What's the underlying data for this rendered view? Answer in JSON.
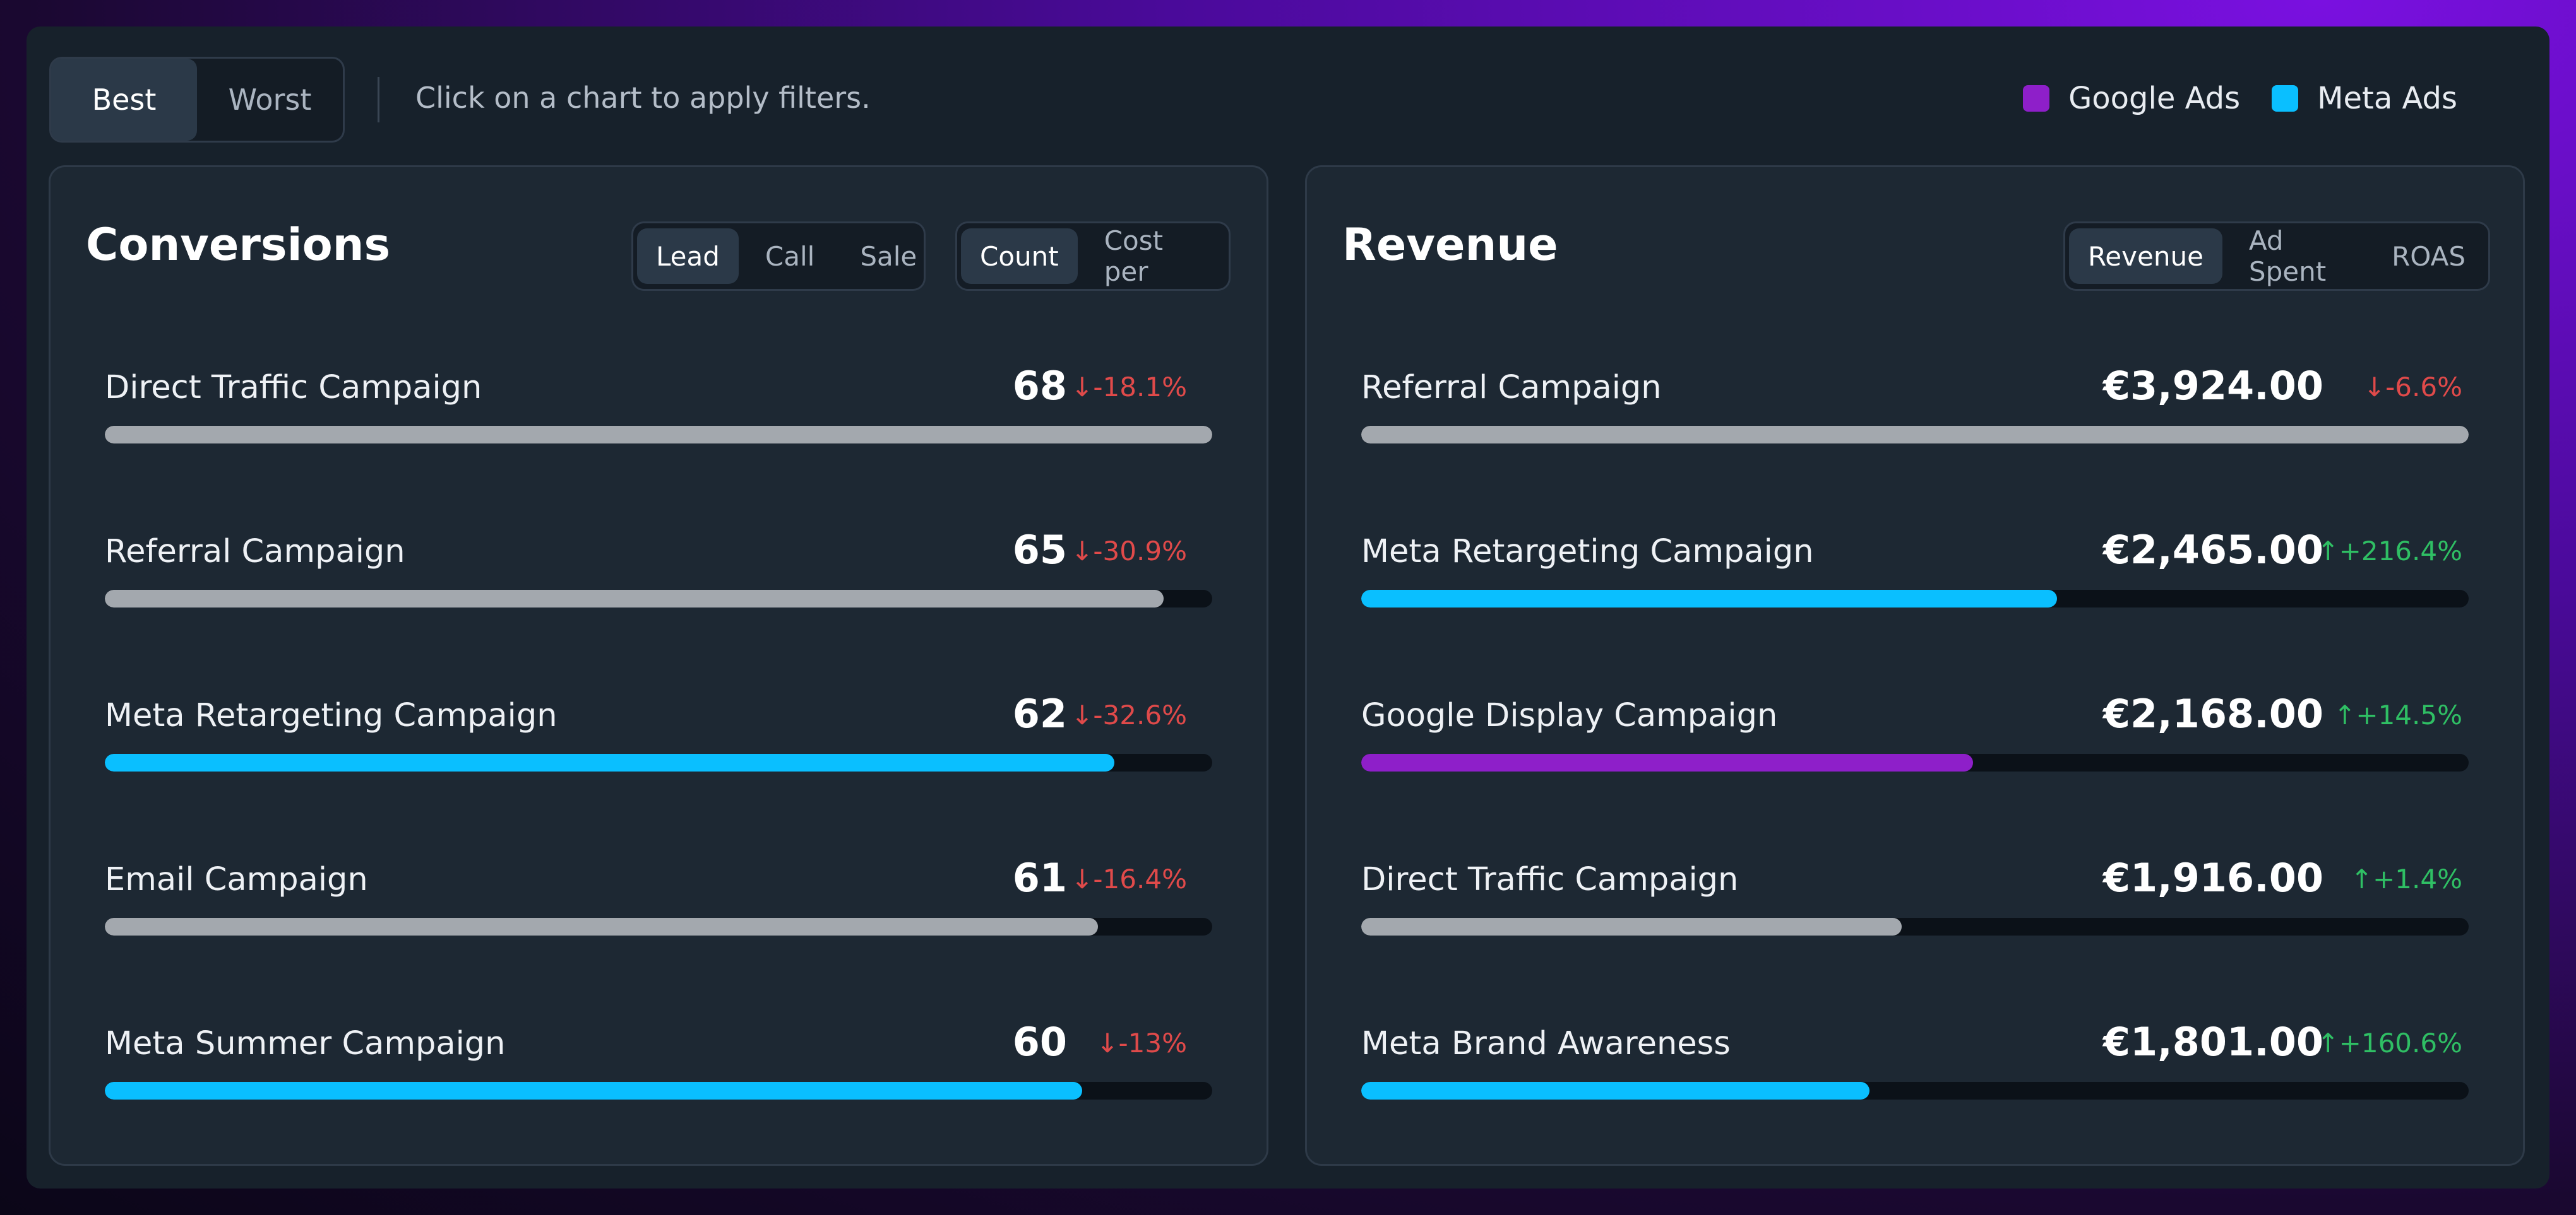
{
  "topbar": {
    "toggle": {
      "best": "Best",
      "worst": "Worst",
      "active": "best"
    },
    "hint": "Click on a chart to apply filters.",
    "legend": [
      {
        "label": "Google Ads",
        "color": "#8e1fc9"
      },
      {
        "label": "Meta Ads",
        "color": "#0abfff"
      }
    ]
  },
  "colors": {
    "neutral": "#a3a8ae",
    "google": "#8e1fc9",
    "meta": "#0abfff",
    "up": "#2fbf64",
    "down": "#e04a4a"
  },
  "conversions": {
    "title": "Conversions",
    "type_tabs": [
      "Lead",
      "Call",
      "Sale"
    ],
    "type_active": "Lead",
    "metric_tabs": [
      "Count",
      "Cost per"
    ],
    "metric_active": "Count",
    "max": 68,
    "rows": [
      {
        "name": "Direct Traffic Campaign",
        "value": "68",
        "amount": 68,
        "delta": "-18.1%",
        "dir": "down",
        "source": "neutral"
      },
      {
        "name": "Referral Campaign",
        "value": "65",
        "amount": 65,
        "delta": "-30.9%",
        "dir": "down",
        "source": "neutral"
      },
      {
        "name": "Meta Retargeting Campaign",
        "value": "62",
        "amount": 62,
        "delta": "-32.6%",
        "dir": "down",
        "source": "meta"
      },
      {
        "name": "Email Campaign",
        "value": "61",
        "amount": 61,
        "delta": "-16.4%",
        "dir": "down",
        "source": "neutral"
      },
      {
        "name": "Meta Summer Campaign",
        "value": "60",
        "amount": 60,
        "delta": "-13%",
        "dir": "down",
        "source": "meta"
      }
    ]
  },
  "revenue": {
    "title": "Revenue",
    "metric_tabs": [
      "Revenue",
      "Ad Spent",
      "ROAS"
    ],
    "metric_active": "Revenue",
    "max": 3924,
    "rows": [
      {
        "name": "Referral Campaign",
        "value": "€3,924.00",
        "amount": 3924,
        "delta": "-6.6%",
        "dir": "down",
        "source": "neutral"
      },
      {
        "name": "Meta Retargeting Campaign",
        "value": "€2,465.00",
        "amount": 2465,
        "delta": "+216.4%",
        "dir": "up",
        "source": "meta"
      },
      {
        "name": "Google Display Campaign",
        "value": "€2,168.00",
        "amount": 2168,
        "delta": "+14.5%",
        "dir": "up",
        "source": "google"
      },
      {
        "name": "Direct Traffic Campaign",
        "value": "€1,916.00",
        "amount": 1916,
        "delta": "+1.4%",
        "dir": "up",
        "source": "neutral"
      },
      {
        "name": "Meta Brand Awareness",
        "value": "€1,801.00",
        "amount": 1801,
        "delta": "+160.6%",
        "dir": "up",
        "source": "meta"
      }
    ]
  }
}
